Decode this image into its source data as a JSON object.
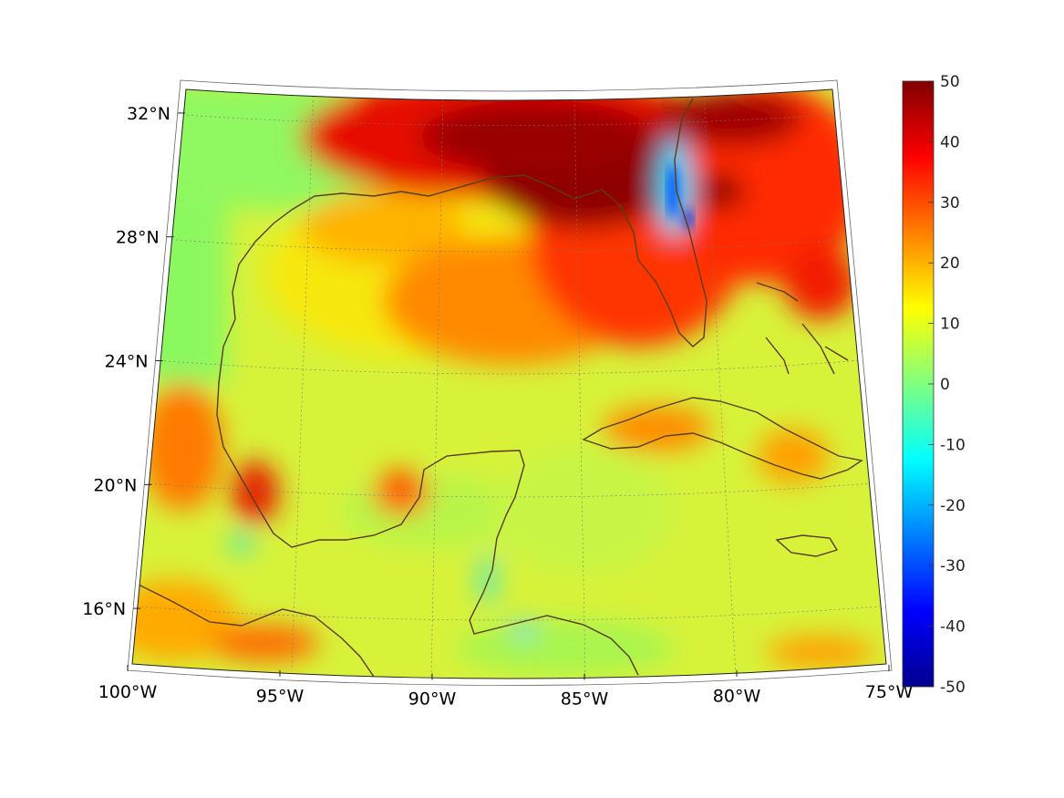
{
  "map": {
    "projection": "conic",
    "lon_range": [
      -100,
      -75
    ],
    "lat_range": [
      14,
      33
    ],
    "lon_ticks": [
      {
        "value": -100,
        "label": "100°W"
      },
      {
        "value": -95,
        "label": "95°W"
      },
      {
        "value": -90,
        "label": "90°W"
      },
      {
        "value": -85,
        "label": "85°W"
      },
      {
        "value": -80,
        "label": "80°W"
      },
      {
        "value": -75,
        "label": "75°W"
      }
    ],
    "lat_ticks": [
      {
        "value": 16,
        "label": "16°N"
      },
      {
        "value": 20,
        "label": "20°N"
      },
      {
        "value": 24,
        "label": "24°N"
      },
      {
        "value": 28,
        "label": "28°N"
      },
      {
        "value": 32,
        "label": "32°N"
      }
    ],
    "colormap": "jet",
    "grid": true,
    "coastline_color": "#5a3d12"
  },
  "colorbar": {
    "min": -50,
    "max": 50,
    "ticks": [
      {
        "value": 50,
        "label": "50"
      },
      {
        "value": 40,
        "label": "40"
      },
      {
        "value": 30,
        "label": "30"
      },
      {
        "value": 20,
        "label": "20"
      },
      {
        "value": 10,
        "label": "10"
      },
      {
        "value": 0,
        "label": "0"
      },
      {
        "value": -10,
        "label": "-10"
      },
      {
        "value": -20,
        "label": "-20"
      },
      {
        "value": -30,
        "label": "-30"
      },
      {
        "value": -40,
        "label": "-40"
      },
      {
        "value": -50,
        "label": "-50"
      }
    ]
  }
}
